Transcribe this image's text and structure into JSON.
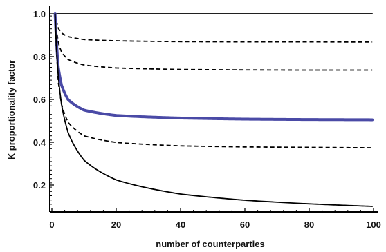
{
  "chart_data": {
    "type": "line",
    "title": "",
    "xlabel": "number of counterparties",
    "ylabel": "K proportionality factor",
    "xlim": [
      0,
      100
    ],
    "ylim": [
      0.1,
      1.0
    ],
    "grid": false,
    "legend": "none",
    "xticks": [
      0,
      20,
      40,
      60,
      80,
      100
    ],
    "yticks": [
      0.2,
      0.4,
      0.6,
      0.8,
      1.0
    ],
    "xtick_labels": [
      "0",
      "20",
      "40",
      "60",
      "80",
      "100"
    ],
    "ytick_labels": [
      "0.2",
      "0.4",
      "0.6",
      "0.8",
      "1.0"
    ],
    "x": [
      1,
      2,
      3,
      5,
      10,
      20,
      40,
      60,
      80,
      100
    ],
    "series": [
      {
        "style": "solid",
        "color": "#000000",
        "values": [
          1.0,
          1.0,
          1.0,
          1.0,
          1.0,
          1.0,
          1.0,
          1.0,
          1.0,
          1.0
        ]
      },
      {
        "style": "dashed",
        "color": "#000000",
        "values": [
          1.0,
          0.933,
          0.911,
          0.894,
          0.88,
          0.874,
          0.87,
          0.869,
          0.869,
          0.868
        ]
      },
      {
        "style": "dashed",
        "color": "#000000",
        "values": [
          1.0,
          0.866,
          0.822,
          0.787,
          0.761,
          0.747,
          0.74,
          0.738,
          0.737,
          0.737
        ]
      },
      {
        "style": "solid-thick",
        "color": "#4a4aa6",
        "values": [
          1.0,
          0.75,
          0.667,
          0.6,
          0.55,
          0.525,
          0.513,
          0.508,
          0.506,
          0.505
        ]
      },
      {
        "style": "dashed",
        "color": "#000000",
        "values": [
          1.0,
          0.683,
          0.578,
          0.494,
          0.43,
          0.399,
          0.383,
          0.378,
          0.376,
          0.374
        ]
      },
      {
        "style": "solid",
        "color": "#000000",
        "values": [
          1.0,
          0.707,
          0.577,
          0.447,
          0.316,
          0.224,
          0.158,
          0.129,
          0.112,
          0.1
        ]
      }
    ]
  }
}
